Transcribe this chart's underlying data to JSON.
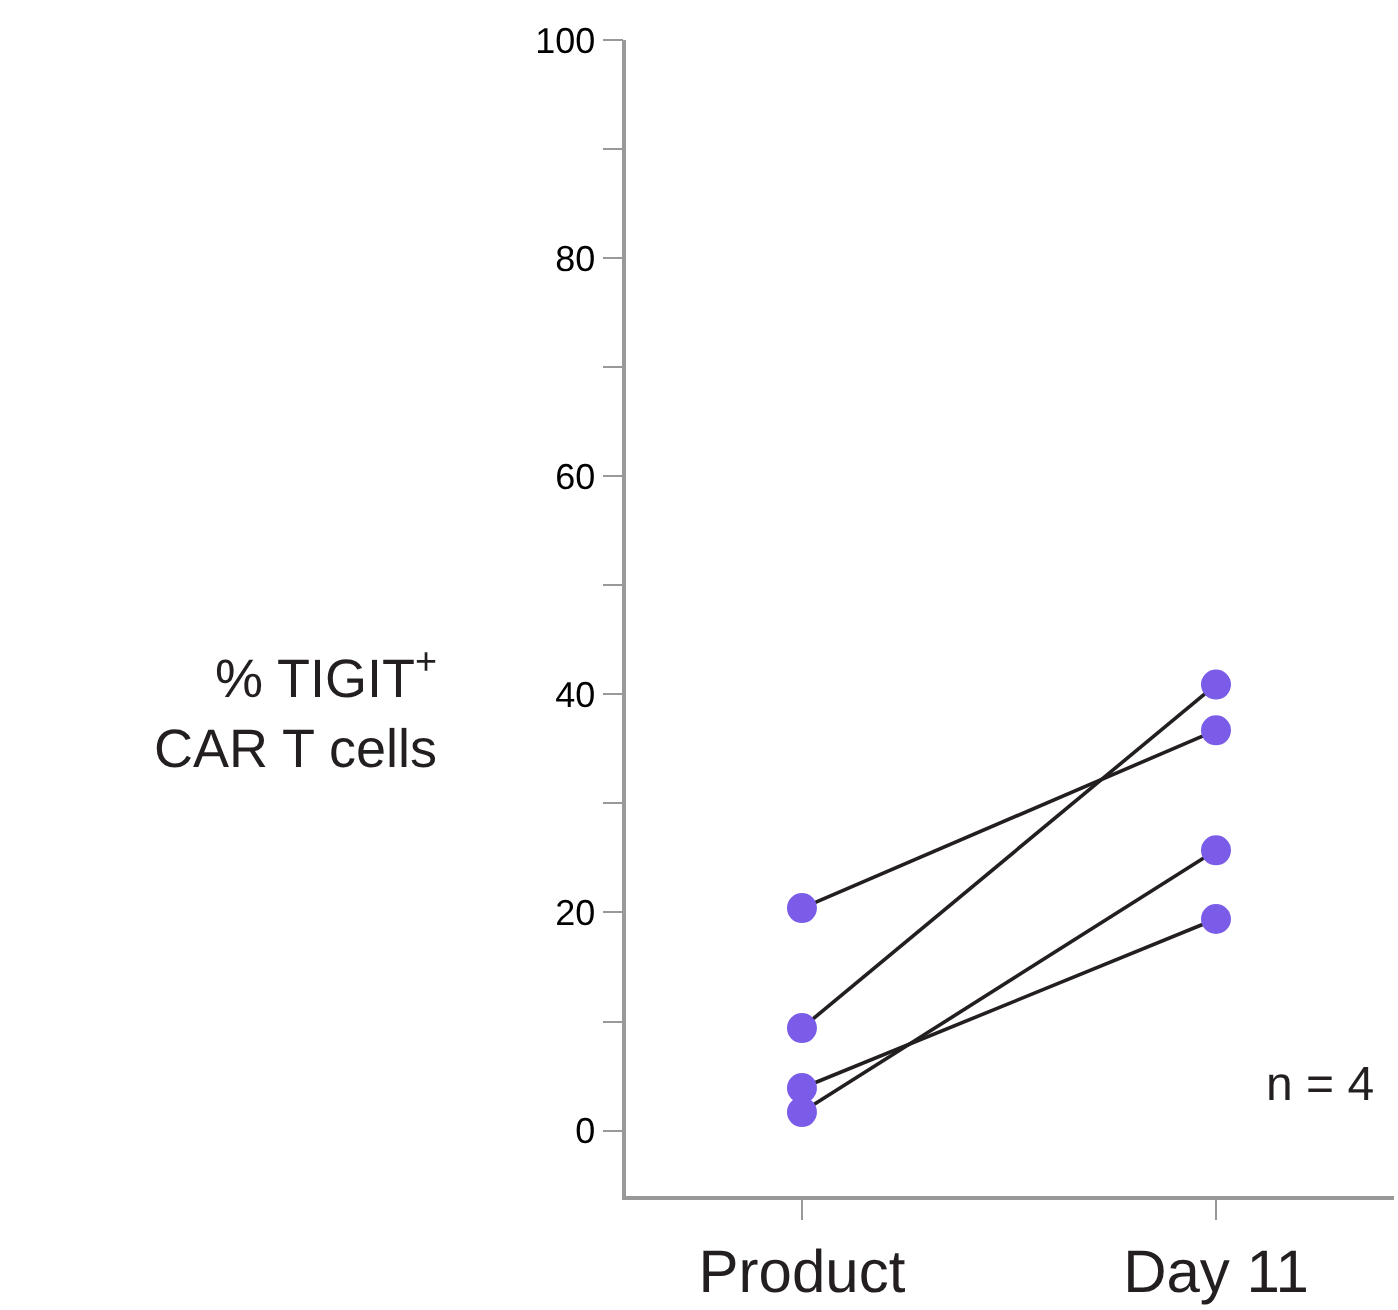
{
  "chart_data": {
    "type": "line",
    "ylabel": "% TIGIT$^{+}$\nCAR T cells",
    "categories": [
      "Product",
      "Day 11"
    ],
    "series": [
      {
        "color": "#7b5ce8",
        "values": [
          20.4,
          36.7
        ]
      },
      {
        "color": "#7b5ce8",
        "values": [
          9.4,
          40.9
        ]
      },
      {
        "color": "#7b5ce8",
        "values": [
          3.9,
          19.4
        ]
      },
      {
        "color": "#7b5ce8",
        "values": [
          1.7,
          25.7
        ]
      }
    ],
    "ylim": [
      -6,
      100
    ],
    "yticks": [
      0,
      {
        "value": 10,
        "label": null
      },
      20,
      {
        "value": 30,
        "label": null
      },
      40,
      {
        "value": 50,
        "label": null
      },
      60,
      {
        "value": 70,
        "label": null
      },
      80,
      {
        "value": 90,
        "label": null
      },
      100
    ],
    "annotations": [
      "n = 4"
    ],
    "marker": "circle",
    "line_style": "solid"
  }
}
